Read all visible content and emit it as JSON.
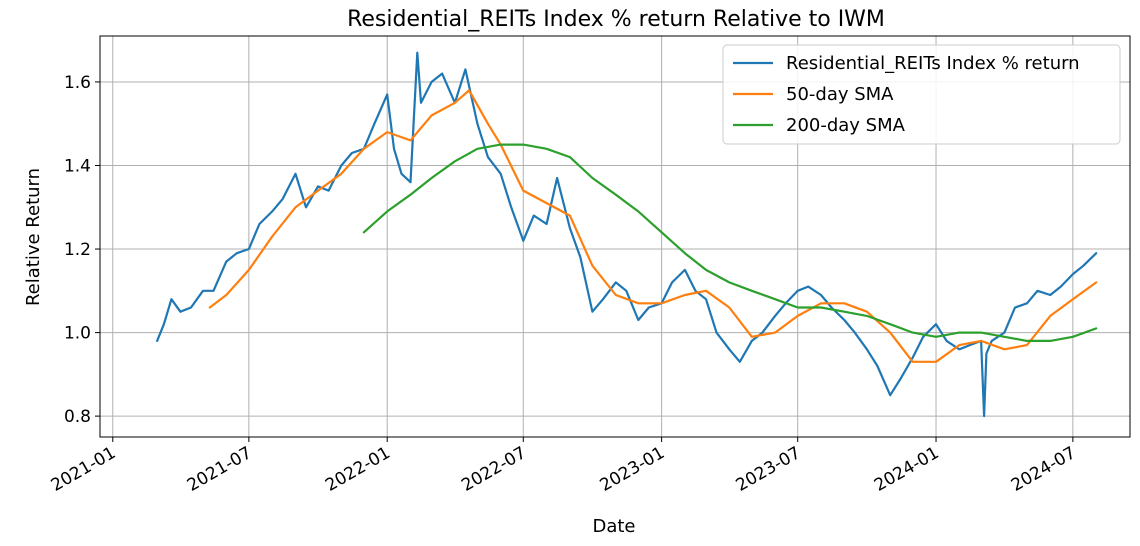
{
  "chart_data": {
    "type": "line",
    "title": "Residential_REITs Index % return Relative to IWM",
    "xlabel": "Date",
    "ylabel": "Relative Return",
    "xlim": [
      "2020-12-15",
      "2024-09-15"
    ],
    "ylim": [
      0.75,
      1.71
    ],
    "grid": true,
    "legend_position": "top-right",
    "x_ticks": [
      "2021-01",
      "2021-07",
      "2022-01",
      "2022-07",
      "2023-01",
      "2023-07",
      "2024-01",
      "2024-07"
    ],
    "x_tick_dates": [
      "2021-01-01",
      "2021-07-01",
      "2022-01-01",
      "2022-07-01",
      "2023-01-01",
      "2023-07-01",
      "2024-01-01",
      "2024-07-01"
    ],
    "y_ticks": [
      0.8,
      1.0,
      1.2,
      1.4,
      1.6
    ],
    "y_tick_labels": [
      "0.8",
      "1.0",
      "1.2",
      "1.4",
      "1.6"
    ],
    "series": [
      {
        "name": "Residential_REITs Index % return",
        "color": "#1f77b4",
        "x": [
          "2021-03-01",
          "2021-03-10",
          "2021-03-20",
          "2021-04-01",
          "2021-04-15",
          "2021-05-01",
          "2021-05-15",
          "2021-06-01",
          "2021-06-15",
          "2021-07-01",
          "2021-07-15",
          "2021-08-01",
          "2021-08-15",
          "2021-09-01",
          "2021-09-15",
          "2021-10-01",
          "2021-10-15",
          "2021-11-01",
          "2021-11-15",
          "2021-12-01",
          "2021-12-15",
          "2022-01-01",
          "2022-01-10",
          "2022-01-20",
          "2022-02-01",
          "2022-02-10",
          "2022-02-15",
          "2022-03-01",
          "2022-03-15",
          "2022-04-01",
          "2022-04-15",
          "2022-05-01",
          "2022-05-15",
          "2022-06-01",
          "2022-06-15",
          "2022-07-01",
          "2022-07-15",
          "2022-08-01",
          "2022-08-15",
          "2022-09-01",
          "2022-09-15",
          "2022-10-01",
          "2022-10-15",
          "2022-11-01",
          "2022-11-15",
          "2022-12-01",
          "2022-12-15",
          "2023-01-01",
          "2023-01-15",
          "2023-02-01",
          "2023-02-15",
          "2023-03-01",
          "2023-03-15",
          "2023-04-01",
          "2023-04-15",
          "2023-05-01",
          "2023-05-15",
          "2023-06-01",
          "2023-06-15",
          "2023-07-01",
          "2023-07-15",
          "2023-08-01",
          "2023-08-15",
          "2023-09-01",
          "2023-09-15",
          "2023-10-01",
          "2023-10-15",
          "2023-11-01",
          "2023-11-15",
          "2023-12-01",
          "2023-12-15",
          "2024-01-01",
          "2024-01-15",
          "2024-02-01",
          "2024-02-15",
          "2024-03-01",
          "2024-03-05",
          "2024-03-08",
          "2024-03-15",
          "2024-04-01",
          "2024-04-15",
          "2024-05-01",
          "2024-05-15",
          "2024-06-01",
          "2024-06-15",
          "2024-07-01",
          "2024-07-15",
          "2024-08-01"
        ],
        "y": [
          0.98,
          1.02,
          1.08,
          1.05,
          1.06,
          1.1,
          1.1,
          1.17,
          1.19,
          1.2,
          1.26,
          1.29,
          1.32,
          1.38,
          1.3,
          1.35,
          1.34,
          1.4,
          1.43,
          1.44,
          1.5,
          1.57,
          1.44,
          1.38,
          1.36,
          1.67,
          1.55,
          1.6,
          1.62,
          1.55,
          1.63,
          1.5,
          1.42,
          1.38,
          1.3,
          1.22,
          1.28,
          1.26,
          1.37,
          1.25,
          1.18,
          1.05,
          1.08,
          1.12,
          1.1,
          1.03,
          1.06,
          1.07,
          1.12,
          1.15,
          1.1,
          1.08,
          1.0,
          0.96,
          0.93,
          0.98,
          1.0,
          1.04,
          1.07,
          1.1,
          1.11,
          1.09,
          1.06,
          1.03,
          1.0,
          0.96,
          0.92,
          0.85,
          0.89,
          0.94,
          0.99,
          1.02,
          0.98,
          0.96,
          0.97,
          0.98,
          0.8,
          0.95,
          0.98,
          1.0,
          1.06,
          1.07,
          1.1,
          1.09,
          1.11,
          1.14,
          1.16,
          1.19
        ]
      },
      {
        "name": "50-day SMA",
        "color": "#ff7f0e",
        "x": [
          "2021-05-10",
          "2021-06-01",
          "2021-07-01",
          "2021-08-01",
          "2021-09-01",
          "2021-10-01",
          "2021-11-01",
          "2021-12-01",
          "2022-01-01",
          "2022-02-01",
          "2022-03-01",
          "2022-04-01",
          "2022-04-20",
          "2022-05-15",
          "2022-06-01",
          "2022-07-01",
          "2022-08-01",
          "2022-09-01",
          "2022-10-01",
          "2022-11-01",
          "2022-12-01",
          "2023-01-01",
          "2023-02-01",
          "2023-03-01",
          "2023-04-01",
          "2023-05-01",
          "2023-06-01",
          "2023-07-01",
          "2023-08-01",
          "2023-09-01",
          "2023-10-01",
          "2023-11-01",
          "2023-12-01",
          "2024-01-01",
          "2024-02-01",
          "2024-03-01",
          "2024-04-01",
          "2024-05-01",
          "2024-06-01",
          "2024-07-01",
          "2024-08-01"
        ],
        "y": [
          1.06,
          1.09,
          1.15,
          1.23,
          1.3,
          1.34,
          1.38,
          1.44,
          1.48,
          1.46,
          1.52,
          1.55,
          1.58,
          1.5,
          1.45,
          1.34,
          1.31,
          1.28,
          1.16,
          1.09,
          1.07,
          1.07,
          1.09,
          1.1,
          1.06,
          0.99,
          1.0,
          1.04,
          1.07,
          1.07,
          1.05,
          1.0,
          0.93,
          0.93,
          0.97,
          0.98,
          0.96,
          0.97,
          1.04,
          1.08,
          1.12
        ]
      },
      {
        "name": "200-day SMA",
        "color": "#2ca02c",
        "x": [
          "2021-12-01",
          "2022-01-01",
          "2022-02-01",
          "2022-03-01",
          "2022-04-01",
          "2022-05-01",
          "2022-06-01",
          "2022-07-01",
          "2022-08-01",
          "2022-09-01",
          "2022-10-01",
          "2022-11-01",
          "2022-12-01",
          "2023-01-01",
          "2023-02-01",
          "2023-03-01",
          "2023-04-01",
          "2023-05-01",
          "2023-06-01",
          "2023-07-01",
          "2023-08-01",
          "2023-09-01",
          "2023-10-01",
          "2023-11-01",
          "2023-12-01",
          "2024-01-01",
          "2024-02-01",
          "2024-03-01",
          "2024-04-01",
          "2024-05-01",
          "2024-06-01",
          "2024-07-01",
          "2024-08-01"
        ],
        "y": [
          1.24,
          1.29,
          1.33,
          1.37,
          1.41,
          1.44,
          1.45,
          1.45,
          1.44,
          1.42,
          1.37,
          1.33,
          1.29,
          1.24,
          1.19,
          1.15,
          1.12,
          1.1,
          1.08,
          1.06,
          1.06,
          1.05,
          1.04,
          1.02,
          1.0,
          0.99,
          1.0,
          1.0,
          0.99,
          0.98,
          0.98,
          0.99,
          1.01
        ]
      }
    ]
  }
}
